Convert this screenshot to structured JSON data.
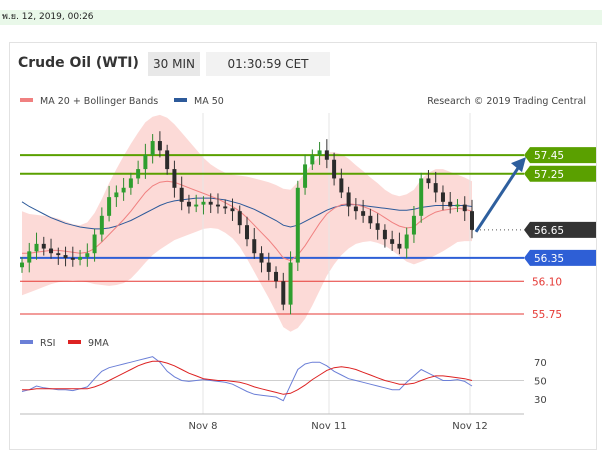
{
  "header": {
    "datetime": "พ.ย. 12, 2019, 00:26"
  },
  "panel": {
    "title": "Crude Oil (WTI)",
    "timeframe": "30 MIN",
    "clock": "01:30:59 CET"
  },
  "legend": {
    "items": [
      {
        "label": "MA 20 + Bollinger Bands",
        "color": "#f08080"
      },
      {
        "label": "MA 50",
        "color": "#2d5a9a"
      }
    ],
    "credit": "Research © 2019 Trading Central"
  },
  "rsi_legend": [
    {
      "label": "RSI",
      "color": "#6b7fd7"
    },
    {
      "label": "9MA",
      "color": "#dd2222"
    }
  ],
  "colors": {
    "resistance": "#5aa000",
    "support": "#2e5fd6",
    "lower": "#e53935",
    "last": "#333333",
    "arrow": "#2e5f9e"
  },
  "chart_data": [
    {
      "type": "candlestick",
      "title": "Crude Oil (WTI)",
      "timeframe": "30 MIN",
      "x_tick_labels": [
        "Nov 8",
        "Nov 11",
        "Nov 12"
      ],
      "ylim": [
        55.6,
        57.9
      ],
      "price_levels": [
        {
          "value": 57.45,
          "label": "57.45",
          "kind": "resistance"
        },
        {
          "value": 57.25,
          "label": "57.25",
          "kind": "resistance"
        },
        {
          "value": 56.65,
          "label": "56.65",
          "kind": "last"
        },
        {
          "value": 56.35,
          "label": "56.35",
          "kind": "support"
        },
        {
          "value": 56.1,
          "label": "56.10",
          "kind": "lower"
        },
        {
          "value": 55.75,
          "label": "55.75",
          "kind": "lower"
        }
      ],
      "closes": [
        56.3,
        56.42,
        56.5,
        56.45,
        56.4,
        56.38,
        56.35,
        56.33,
        56.36,
        56.4,
        56.6,
        56.8,
        57.0,
        57.05,
        57.1,
        57.2,
        57.3,
        57.45,
        57.6,
        57.5,
        57.3,
        57.1,
        56.95,
        56.9,
        56.92,
        56.95,
        56.92,
        56.9,
        56.88,
        56.85,
        56.7,
        56.55,
        56.4,
        56.3,
        56.2,
        56.1,
        55.85,
        56.3,
        57.1,
        57.35,
        57.45,
        57.5,
        57.4,
        57.2,
        57.05,
        56.9,
        56.85,
        56.8,
        56.72,
        56.65,
        56.55,
        56.5,
        56.45,
        56.6,
        56.8,
        57.2,
        57.15,
        57.05,
        56.95,
        56.9,
        56.92,
        56.85,
        56.65
      ],
      "ma20": [
        56.4,
        56.4,
        56.41,
        56.42,
        56.43,
        56.43,
        56.42,
        56.41,
        56.4,
        56.41,
        56.45,
        56.52,
        56.6,
        56.68,
        56.76,
        56.85,
        56.95,
        57.05,
        57.12,
        57.16,
        57.17,
        57.16,
        57.13,
        57.1,
        57.07,
        57.04,
        57.01,
        56.98,
        56.94,
        56.9,
        56.85,
        56.78,
        56.7,
        56.62,
        56.54,
        56.45,
        56.35,
        56.32,
        56.38,
        56.48,
        56.6,
        56.72,
        56.82,
        56.88,
        56.92,
        56.93,
        56.92,
        56.9,
        56.87,
        56.83,
        56.78,
        56.73,
        56.69,
        56.67,
        56.68,
        56.75,
        56.8,
        56.84,
        56.86,
        56.87,
        56.88,
        56.87,
        56.85
      ],
      "ma50": [
        56.95,
        56.9,
        56.86,
        56.82,
        56.78,
        56.75,
        56.72,
        56.7,
        56.68,
        56.67,
        56.66,
        56.66,
        56.67,
        56.69,
        56.72,
        56.75,
        56.79,
        56.83,
        56.87,
        56.91,
        56.94,
        56.96,
        56.97,
        56.98,
        56.99,
        56.99,
        56.99,
        56.98,
        56.97,
        56.95,
        56.93,
        56.9,
        56.87,
        56.83,
        56.79,
        56.75,
        56.7,
        56.68,
        56.7,
        56.74,
        56.78,
        56.82,
        56.86,
        56.89,
        56.91,
        56.92,
        56.92,
        56.91,
        56.9,
        56.89,
        56.88,
        56.87,
        56.86,
        56.86,
        56.87,
        56.89,
        56.9,
        56.91,
        56.91,
        56.91,
        56.91,
        56.91,
        56.9
      ],
      "bollinger_half_width": [
        0.45,
        0.42,
        0.4,
        0.38,
        0.36,
        0.34,
        0.32,
        0.3,
        0.3,
        0.32,
        0.38,
        0.46,
        0.55,
        0.62,
        0.68,
        0.72,
        0.74,
        0.75,
        0.74,
        0.72,
        0.68,
        0.62,
        0.56,
        0.5,
        0.44,
        0.38,
        0.34,
        0.32,
        0.32,
        0.34,
        0.38,
        0.44,
        0.5,
        0.56,
        0.62,
        0.68,
        0.74,
        0.76,
        0.78,
        0.78,
        0.76,
        0.72,
        0.66,
        0.6,
        0.54,
        0.48,
        0.42,
        0.38,
        0.34,
        0.32,
        0.3,
        0.3,
        0.32,
        0.36,
        0.4,
        0.44,
        0.46,
        0.46,
        0.44,
        0.4,
        0.36,
        0.34,
        0.32
      ],
      "projection": {
        "from": 56.65,
        "to": 57.45
      }
    },
    {
      "type": "line",
      "title": "RSI",
      "ylim": [
        20,
        80
      ],
      "y_tick_labels": [
        70,
        50,
        30
      ],
      "series": [
        {
          "name": "RSI",
          "values": [
            38,
            40,
            44,
            42,
            41,
            40,
            40,
            39,
            41,
            43,
            52,
            60,
            64,
            66,
            68,
            70,
            72,
            74,
            76,
            70,
            60,
            54,
            50,
            49,
            50,
            51,
            50,
            49,
            48,
            46,
            42,
            38,
            35,
            34,
            33,
            32,
            28,
            45,
            62,
            68,
            70,
            70,
            66,
            60,
            56,
            52,
            50,
            48,
            46,
            44,
            42,
            40,
            40,
            48,
            55,
            62,
            58,
            54,
            50,
            50,
            51,
            49,
            44
          ]
        },
        {
          "name": "9MA",
          "values": [
            40,
            40,
            41,
            41,
            41,
            41,
            41,
            41,
            41,
            41,
            43,
            46,
            50,
            54,
            58,
            62,
            66,
            69,
            71,
            71,
            69,
            66,
            62,
            58,
            55,
            52,
            51,
            50,
            50,
            49,
            48,
            46,
            43,
            41,
            39,
            37,
            35,
            36,
            40,
            45,
            51,
            56,
            61,
            64,
            65,
            64,
            62,
            59,
            56,
            53,
            50,
            48,
            46,
            46,
            47,
            50,
            53,
            55,
            55,
            54,
            53,
            52,
            50
          ]
        }
      ]
    }
  ]
}
